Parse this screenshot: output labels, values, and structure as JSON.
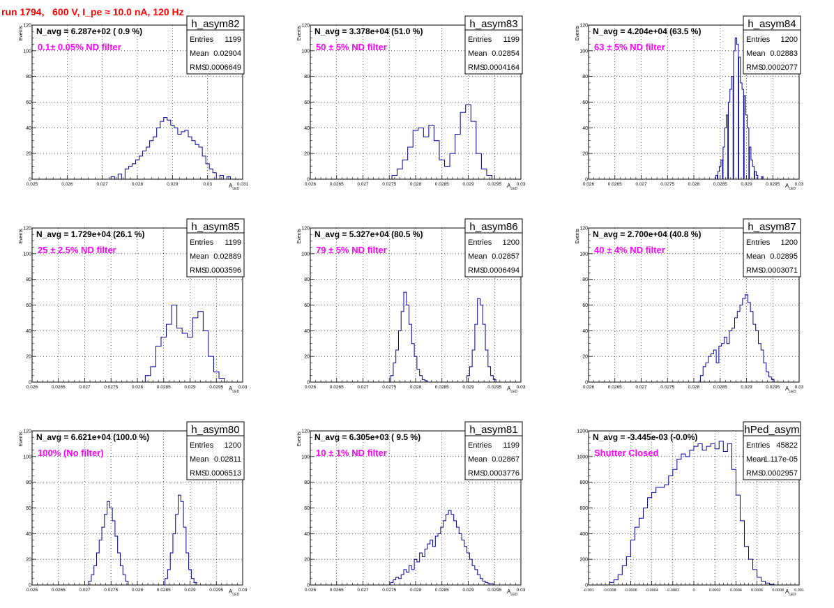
{
  "page_title": "run 1794,   600 V, I_pe ≈ 10.0 nA, 120 Hz",
  "chart_data": [
    {
      "type": "histogram",
      "name": "h_asym82",
      "annotation": "N_avg = 6.287e+02 ( 0.9 %)",
      "label": "0.1± 0.05% ND filter",
      "stats": {
        "Entries": "1199",
        "Mean": "0.02904",
        "RMS": "0.0006649"
      },
      "xlabel": "A",
      "xlabel_sub": "LED",
      "ylabel": "Events",
      "xlim": [
        0.025,
        0.031
      ],
      "ylim": [
        0,
        120
      ],
      "xticks": [
        0.025,
        0.026,
        0.027,
        0.028,
        0.029,
        0.03,
        0.031
      ],
      "xtick_labels": [
        "0.025",
        "0.026",
        "0.027",
        "0.028",
        "0.029",
        "0.03",
        "0.031"
      ],
      "yticks": [
        0,
        20,
        40,
        60,
        80,
        100,
        120
      ],
      "x": [
        0.0273,
        0.0275,
        0.0277,
        0.0278,
        0.0279,
        0.028,
        0.0281,
        0.0282,
        0.0283,
        0.0284,
        0.0285,
        0.0286,
        0.0287,
        0.0288,
        0.0289,
        0.029,
        0.0291,
        0.0292,
        0.0293,
        0.0294,
        0.0295,
        0.0296,
        0.0297,
        0.0298,
        0.0299,
        0.03,
        0.0301,
        0.0302,
        0.0304,
        0.0306
      ],
      "y": [
        2,
        4,
        8,
        10,
        12,
        15,
        18,
        22,
        25,
        30,
        33,
        40,
        45,
        48,
        46,
        42,
        40,
        35,
        37,
        38,
        33,
        30,
        27,
        25,
        18,
        12,
        8,
        5,
        3,
        2
      ]
    },
    {
      "type": "histogram",
      "name": "h_asym83",
      "annotation": "N_avg = 3.378e+04 (51.0 %)",
      "label": "50 ± 5% ND filter",
      "stats": {
        "Entries": "1199",
        "Mean": "0.02854",
        "RMS": "0.0004164"
      },
      "xlabel": "A",
      "xlabel_sub": "LED",
      "ylabel": "Events",
      "xlim": [
        0.026,
        0.03
      ],
      "ylim": [
        0,
        120
      ],
      "xticks": [
        0.026,
        0.0265,
        0.027,
        0.0275,
        0.028,
        0.0285,
        0.029,
        0.0295,
        0.03
      ],
      "xtick_labels": [
        "0.026",
        "0.0265",
        "0.027",
        "0.0275",
        "0.028",
        "0.0285",
        "0.029",
        "0.0295",
        "0.03"
      ],
      "yticks": [
        0,
        20,
        40,
        60,
        80,
        100,
        120
      ],
      "x": [
        0.0276,
        0.0277,
        0.0278,
        0.0279,
        0.028,
        0.0281,
        0.0282,
        0.0283,
        0.0284,
        0.0285,
        0.0286,
        0.0287,
        0.0288,
        0.0289,
        0.029,
        0.0291,
        0.0292,
        0.0293,
        0.0294
      ],
      "y": [
        3,
        8,
        15,
        25,
        38,
        40,
        33,
        42,
        30,
        15,
        10,
        20,
        35,
        52,
        58,
        45,
        20,
        8,
        3
      ]
    },
    {
      "type": "histogram",
      "name": "h_asym84",
      "annotation": "N_avg = 4.204e+04 (63.5 %)",
      "label": "63 ± 5% ND filter",
      "stats": {
        "Entries": "1200",
        "Mean": "0.02883",
        "RMS": "0.0002077"
      },
      "xlabel": "A",
      "xlabel_sub": "LED",
      "ylabel": "Events",
      "xlim": [
        0.026,
        0.03
      ],
      "ylim": [
        0,
        120
      ],
      "xticks": [
        0.026,
        0.0265,
        0.027,
        0.0275,
        0.028,
        0.0285,
        0.029,
        0.0295,
        0.03
      ],
      "xtick_labels": [
        "0.026",
        "0.0265",
        "0.027",
        "0.0275",
        "0.028",
        "0.0285",
        "0.029",
        "0.0295",
        "0.03"
      ],
      "yticks": [
        0,
        20,
        40,
        60,
        80,
        100,
        120
      ],
      "x": [
        0.02843,
        0.02847,
        0.0285,
        0.02853,
        0.02857,
        0.0286,
        0.02863,
        0.02867,
        0.0287,
        0.02873,
        0.02877,
        0.0288,
        0.02883,
        0.02887,
        0.0289,
        0.02893,
        0.02897,
        0.029,
        0.02903,
        0.02907,
        0.0291,
        0.02913,
        0.02917,
        0.0292,
        0.0293
      ],
      "y": [
        3,
        6,
        10,
        15,
        25,
        40,
        50,
        60,
        70,
        80,
        100,
        110,
        105,
        95,
        75,
        70,
        65,
        50,
        40,
        25,
        15,
        10,
        6,
        3,
        2
      ]
    },
    {
      "type": "histogram",
      "name": "h_asym85",
      "annotation": "N_avg = 1.729e+04 (26.1 %)",
      "label": "25 ± 2.5% ND filter",
      "stats": {
        "Entries": "1199",
        "Mean": "0.02889",
        "RMS": "0.0003596"
      },
      "xlabel": "A",
      "xlabel_sub": "LED",
      "ylabel": "Events",
      "xlim": [
        0.026,
        0.03
      ],
      "ylim": [
        0,
        120
      ],
      "xticks": [
        0.026,
        0.0265,
        0.027,
        0.0275,
        0.028,
        0.0285,
        0.029,
        0.0295,
        0.03
      ],
      "xtick_labels": [
        "0.026",
        "0.0265",
        "0.027",
        "0.0275",
        "0.028",
        "0.0285",
        "0.029",
        "0.0295",
        "0.03"
      ],
      "yticks": [
        0,
        20,
        40,
        60,
        80,
        100,
        120
      ],
      "x": [
        0.0282,
        0.0283,
        0.0284,
        0.0285,
        0.0286,
        0.0287,
        0.0288,
        0.0289,
        0.029,
        0.0291,
        0.0292,
        0.0293,
        0.0294,
        0.0295,
        0.0296
      ],
      "y": [
        5,
        12,
        28,
        35,
        45,
        60,
        42,
        38,
        35,
        50,
        55,
        40,
        20,
        8,
        3
      ]
    },
    {
      "type": "histogram",
      "name": "h_asym86",
      "annotation": "N_avg = 5.327e+04 (80.5 %)",
      "label": "79 ± 5% ND filter",
      "stats": {
        "Entries": "1200",
        "Mean": "0.02857",
        "RMS": "0.0006494"
      },
      "xlabel": "A",
      "xlabel_sub": "LED",
      "ylabel": "Events",
      "xlim": [
        0.026,
        0.03
      ],
      "ylim": [
        0,
        120
      ],
      "xticks": [
        0.026,
        0.0265,
        0.027,
        0.0275,
        0.028,
        0.0285,
        0.029,
        0.0295,
        0.03
      ],
      "xtick_labels": [
        "0.026",
        "0.0265",
        "0.027",
        "0.0275",
        "0.028",
        "0.0285",
        "0.029",
        "0.0295",
        "0.03"
      ],
      "yticks": [
        0,
        20,
        40,
        60,
        80,
        100,
        120
      ],
      "x": [
        0.02755,
        0.0276,
        0.02765,
        0.0277,
        0.02775,
        0.0278,
        0.02785,
        0.0279,
        0.02795,
        0.028,
        0.02805,
        0.0281,
        0.02815,
        0.0282,
        0.029,
        0.02905,
        0.0291,
        0.02915,
        0.0292,
        0.02925,
        0.0293,
        0.02935,
        0.0294,
        0.02945,
        0.0295
      ],
      "y": [
        5,
        15,
        25,
        40,
        55,
        70,
        60,
        45,
        30,
        20,
        10,
        5,
        2,
        1,
        5,
        12,
        25,
        45,
        65,
        60,
        45,
        25,
        12,
        5,
        2
      ]
    },
    {
      "type": "histogram",
      "name": "h_asym87",
      "annotation": "N_avg = 2.700e+04 (40.8 %)",
      "label": "40 ± 4% ND filter",
      "stats": {
        "Entries": "1200",
        "Mean": "0.02895",
        "RMS": "0.0003071"
      },
      "xlabel": "A",
      "xlabel_sub": "LED",
      "ylabel": "Events",
      "xlim": [
        0.026,
        0.03
      ],
      "ylim": [
        0,
        120
      ],
      "xticks": [
        0.026,
        0.0265,
        0.027,
        0.0275,
        0.028,
        0.0285,
        0.029,
        0.0295,
        0.03
      ],
      "xtick_labels": [
        "0.026",
        "0.0265",
        "0.027",
        "0.0275",
        "0.028",
        "0.0285",
        "0.029",
        "0.0295",
        "0.03"
      ],
      "yticks": [
        0,
        20,
        40,
        60,
        80,
        100,
        120
      ],
      "x": [
        0.02815,
        0.0282,
        0.02825,
        0.0283,
        0.02835,
        0.0284,
        0.02845,
        0.0285,
        0.02855,
        0.0286,
        0.02865,
        0.0287,
        0.02875,
        0.0288,
        0.02885,
        0.0289,
        0.02895,
        0.029,
        0.02905,
        0.0291,
        0.02915,
        0.0292,
        0.02925,
        0.0293,
        0.02935,
        0.0294,
        0.02945,
        0.0295
      ],
      "y": [
        5,
        12,
        15,
        20,
        22,
        25,
        15,
        28,
        30,
        35,
        30,
        40,
        42,
        50,
        55,
        60,
        65,
        68,
        62,
        55,
        45,
        40,
        30,
        25,
        15,
        8,
        4,
        2
      ]
    },
    {
      "type": "histogram",
      "name": "h_asym80",
      "annotation": "N_avg = 6.621e+04 (100.0 %)",
      "label": "100% (No filter)",
      "stats": {
        "Entries": "1200",
        "Mean": "0.02811",
        "RMS": "0.0006513"
      },
      "xlabel": "A",
      "xlabel_sub": "LED",
      "ylabel": "Events",
      "xlim": [
        0.026,
        0.03
      ],
      "ylim": [
        0,
        120
      ],
      "xticks": [
        0.026,
        0.0265,
        0.027,
        0.0275,
        0.028,
        0.0285,
        0.029,
        0.0295,
        0.03
      ],
      "xtick_labels": [
        "0.026",
        "0.0265",
        "0.027",
        "0.0275",
        "0.028",
        "0.0285",
        "0.029",
        "0.0295",
        "0.03"
      ],
      "yticks": [
        0,
        20,
        40,
        60,
        80,
        100,
        120
      ],
      "x": [
        0.0271,
        0.02715,
        0.0272,
        0.02725,
        0.0273,
        0.02735,
        0.0274,
        0.02745,
        0.0275,
        0.02755,
        0.0276,
        0.02765,
        0.0277,
        0.02775,
        0.0278,
        0.02855,
        0.0286,
        0.02865,
        0.0287,
        0.02875,
        0.0288,
        0.02885,
        0.0289,
        0.02895,
        0.029,
        0.02905,
        0.0291
      ],
      "y": [
        3,
        8,
        15,
        25,
        35,
        45,
        55,
        65,
        60,
        50,
        38,
        25,
        15,
        8,
        3,
        5,
        12,
        25,
        40,
        55,
        70,
        65,
        45,
        25,
        12,
        5,
        2
      ]
    },
    {
      "type": "histogram",
      "name": "h_asym81",
      "annotation": "N_avg = 6.305e+03 ( 9.5 %)",
      "label": "10 ± 1% ND filter",
      "stats": {
        "Entries": "1199",
        "Mean": "0.02867",
        "RMS": "0.0003776"
      },
      "xlabel": "A",
      "xlabel_sub": "LED",
      "ylabel": "Events",
      "xlim": [
        0.026,
        0.03
      ],
      "ylim": [
        0,
        120
      ],
      "xticks": [
        0.026,
        0.0265,
        0.027,
        0.0275,
        0.028,
        0.0285,
        0.029,
        0.0295,
        0.03
      ],
      "xtick_labels": [
        "0.026",
        "0.0265",
        "0.027",
        "0.0275",
        "0.028",
        "0.0285",
        "0.029",
        "0.0295",
        "0.03"
      ],
      "yticks": [
        0,
        20,
        40,
        60,
        80,
        100,
        120
      ],
      "x": [
        0.02755,
        0.0276,
        0.02765,
        0.0277,
        0.02775,
        0.0278,
        0.02785,
        0.0279,
        0.02795,
        0.028,
        0.02805,
        0.0281,
        0.02815,
        0.0282,
        0.02825,
        0.0283,
        0.02835,
        0.0284,
        0.02845,
        0.0285,
        0.02855,
        0.0286,
        0.02865,
        0.0287,
        0.02875,
        0.0288,
        0.02885,
        0.0289,
        0.02895,
        0.029,
        0.02905,
        0.0291,
        0.02915,
        0.0292,
        0.02925,
        0.0293,
        0.02935,
        0.0294,
        0.02945
      ],
      "y": [
        2,
        4,
        6,
        5,
        8,
        12,
        10,
        15,
        12,
        20,
        18,
        25,
        22,
        28,
        32,
        35,
        30,
        38,
        40,
        45,
        50,
        55,
        58,
        55,
        50,
        45,
        40,
        35,
        30,
        25,
        20,
        15,
        12,
        8,
        5,
        3,
        2,
        1,
        1
      ]
    },
    {
      "type": "histogram",
      "name": "hPed_asym",
      "annotation": "N_avg = -3.445e-03 (-0.0%)",
      "label": "Shutter Closed",
      "stats": {
        "Entries": "45822",
        "Mean": "-1.117e-05",
        "RMS": "0.0002957"
      },
      "xlabel": "A",
      "xlabel_sub": "LED",
      "ylabel": "",
      "xlim": [
        -0.001,
        0.001
      ],
      "ylim": [
        0,
        1200
      ],
      "xticks": [
        -0.001,
        -0.0008,
        -0.0006,
        -0.0004,
        -0.0002,
        0,
        0.0002,
        0.0004,
        0.0006,
        0.0008,
        0.001
      ],
      "xtick_labels": [
        "-0.001",
        "-0.0008",
        "-0.0006",
        "-0.0004",
        "-0.0002",
        "0",
        "0.0002",
        "0.0004",
        "0.0006",
        "0.0008",
        "0.001"
      ],
      "yticks": [
        0,
        200,
        400,
        600,
        800,
        1000,
        1200
      ],
      "x": [
        -0.00078,
        -0.00074,
        -0.0007,
        -0.00066,
        -0.00062,
        -0.00058,
        -0.00054,
        -0.0005,
        -0.00046,
        -0.00042,
        -0.00038,
        -0.00034,
        -0.0003,
        -0.00026,
        -0.00022,
        -0.00018,
        -0.00014,
        -0.0001,
        -6e-05,
        -2e-05,
        2e-05,
        6e-05,
        0.0001,
        0.00014,
        0.00018,
        0.00022,
        0.00026,
        0.0003,
        0.00034,
        0.00038,
        0.00042,
        0.00046,
        0.0005,
        0.00054,
        0.00058,
        0.00062,
        0.00066,
        0.0007,
        0.00074
      ],
      "y": [
        20,
        40,
        80,
        150,
        220,
        350,
        450,
        520,
        600,
        680,
        720,
        760,
        760,
        780,
        850,
        900,
        980,
        1020,
        1000,
        1050,
        1080,
        1100,
        1050,
        1080,
        1100,
        1060,
        1120,
        1040,
        1100,
        900,
        700,
        500,
        300,
        200,
        120,
        60,
        30,
        15,
        5
      ]
    }
  ]
}
